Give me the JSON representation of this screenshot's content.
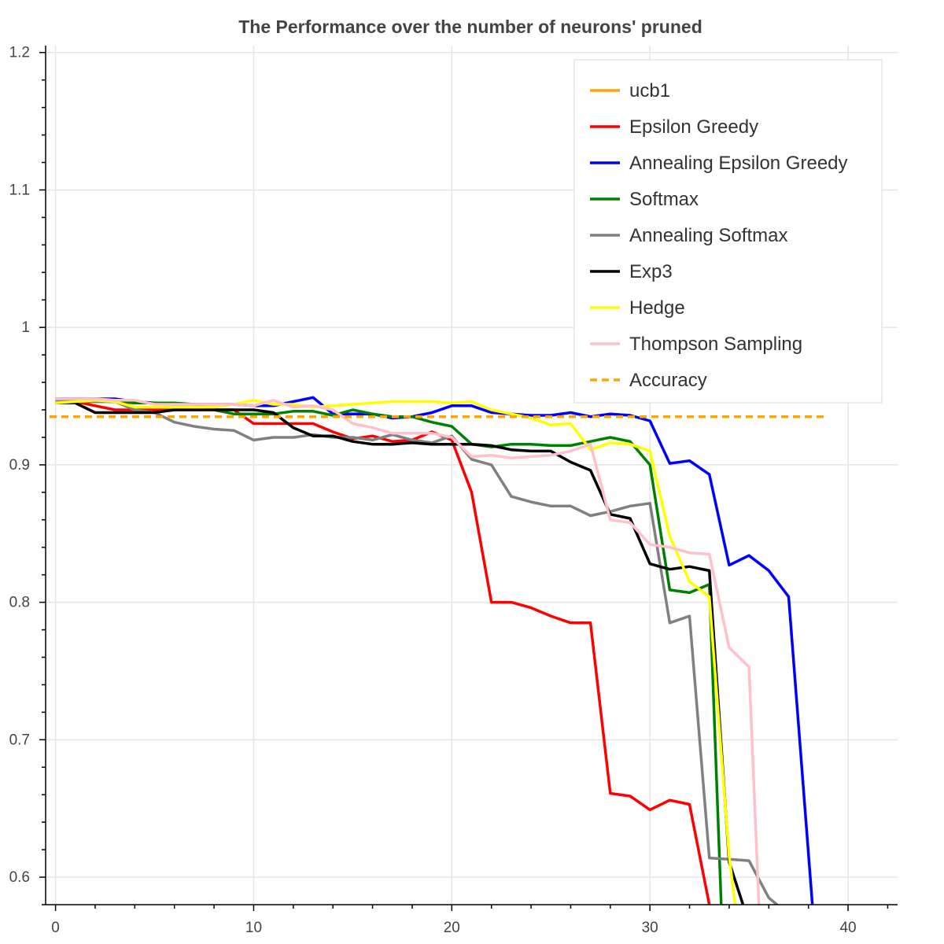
{
  "chart_data": {
    "type": "line",
    "title": "The Performance over the number of neurons' pruned",
    "xlabel": "",
    "ylabel": "",
    "xlim": [
      -0.5,
      42.5
    ],
    "ylim": [
      0.58,
      1.205
    ],
    "x_ticks": [
      0,
      10,
      20,
      30,
      40
    ],
    "x_tick_labels": [
      "0",
      "10",
      "20",
      "30",
      "40"
    ],
    "y_ticks": [
      0.6,
      0.7,
      0.8,
      0.9,
      1.0,
      1.1,
      1.2
    ],
    "y_tick_labels": [
      "0.6",
      "0.7",
      "0.8",
      "0.9",
      "1",
      "1.1",
      "1.2"
    ],
    "grid": true,
    "legend_position": "top-right",
    "series": [
      {
        "name": "ucb1",
        "color": "#ffa500",
        "dash": "solid",
        "x": [],
        "y": []
      },
      {
        "name": "Epsilon Greedy",
        "color": "#ff0000",
        "dash": "solid",
        "x": [
          0,
          1,
          2,
          3,
          4,
          5,
          6,
          7,
          8,
          9,
          10,
          11,
          12,
          13,
          14,
          15,
          16,
          17,
          18,
          19,
          20,
          21,
          22,
          23,
          24,
          25,
          26,
          27,
          28,
          29,
          30,
          31,
          32,
          33
        ],
        "y": [
          0.947,
          0.946,
          0.943,
          0.94,
          0.94,
          0.94,
          0.94,
          0.94,
          0.94,
          0.94,
          0.93,
          0.93,
          0.93,
          0.93,
          0.924,
          0.919,
          0.921,
          0.917,
          0.918,
          0.924,
          0.918,
          0.88,
          0.8,
          0.8,
          0.796,
          0.79,
          0.785,
          0.785,
          0.661,
          0.659,
          0.649,
          0.656,
          0.653,
          0.58
        ]
      },
      {
        "name": "Annealing Epsilon Greedy",
        "color": "#0000ff",
        "dash": "solid",
        "x": [
          0,
          1,
          2,
          3,
          4,
          5,
          6,
          7,
          8,
          9,
          10,
          11,
          12,
          13,
          14,
          15,
          16,
          17,
          18,
          19,
          20,
          21,
          22,
          23,
          24,
          25,
          26,
          27,
          28,
          29,
          30,
          31,
          32,
          33,
          34,
          35,
          36,
          37,
          38.2
        ],
        "y": [
          0.948,
          0.948,
          0.948,
          0.948,
          0.946,
          0.945,
          0.944,
          0.944,
          0.944,
          0.944,
          0.943,
          0.943,
          0.946,
          0.949,
          0.937,
          0.937,
          0.937,
          0.934,
          0.935,
          0.938,
          0.943,
          0.943,
          0.938,
          0.937,
          0.936,
          0.936,
          0.938,
          0.935,
          0.937,
          0.936,
          0.932,
          0.901,
          0.903,
          0.893,
          0.827,
          0.834,
          0.823,
          0.804,
          0.58
        ]
      },
      {
        "name": "Softmax",
        "color": "#008000",
        "dash": "solid",
        "x": [
          0,
          1,
          2,
          3,
          4,
          5,
          6,
          7,
          8,
          9,
          10,
          11,
          12,
          13,
          14,
          15,
          16,
          17,
          18,
          19,
          20,
          21,
          22,
          23,
          24,
          25,
          26,
          27,
          28,
          29,
          30,
          31,
          32,
          33,
          33.6
        ],
        "y": [
          0.946,
          0.946,
          0.946,
          0.946,
          0.945,
          0.945,
          0.945,
          0.944,
          0.94,
          0.937,
          0.937,
          0.937,
          0.939,
          0.939,
          0.936,
          0.94,
          0.937,
          0.935,
          0.935,
          0.931,
          0.928,
          0.915,
          0.913,
          0.915,
          0.915,
          0.914,
          0.914,
          0.917,
          0.92,
          0.917,
          0.9,
          0.809,
          0.807,
          0.813,
          0.58
        ]
      },
      {
        "name": "Annealing Softmax",
        "color": "#808080",
        "dash": "solid",
        "x": [
          0,
          1,
          2,
          3,
          4,
          5,
          6,
          7,
          8,
          9,
          10,
          11,
          12,
          13,
          14,
          15,
          16,
          17,
          18,
          19,
          20,
          21,
          22,
          23,
          24,
          25,
          26,
          27,
          28,
          29,
          30,
          31,
          32,
          33,
          34,
          35,
          36,
          37
        ],
        "y": [
          0.946,
          0.946,
          0.946,
          0.946,
          0.94,
          0.938,
          0.931,
          0.928,
          0.926,
          0.925,
          0.918,
          0.92,
          0.92,
          0.922,
          0.92,
          0.92,
          0.918,
          0.922,
          0.918,
          0.916,
          0.921,
          0.904,
          0.9,
          0.877,
          0.873,
          0.87,
          0.87,
          0.863,
          0.866,
          0.87,
          0.872,
          0.785,
          0.79,
          0.614,
          0.613,
          0.612,
          0.585,
          0.573
        ]
      },
      {
        "name": "Exp3",
        "color": "#000000",
        "dash": "solid",
        "x": [
          0,
          1,
          2,
          3,
          4,
          5,
          6,
          7,
          8,
          9,
          10,
          11,
          12,
          13,
          14,
          15,
          16,
          17,
          18,
          19,
          20,
          21,
          22,
          23,
          24,
          25,
          26,
          27,
          28,
          29,
          30,
          31,
          32,
          33,
          34,
          34.7
        ],
        "y": [
          0.945,
          0.945,
          0.938,
          0.938,
          0.938,
          0.938,
          0.94,
          0.94,
          0.94,
          0.94,
          0.94,
          0.938,
          0.927,
          0.921,
          0.921,
          0.917,
          0.915,
          0.915,
          0.916,
          0.915,
          0.915,
          0.915,
          0.914,
          0.911,
          0.91,
          0.91,
          0.902,
          0.896,
          0.864,
          0.861,
          0.828,
          0.824,
          0.826,
          0.823,
          0.611,
          0.58
        ]
      },
      {
        "name": "Hedge",
        "color": "#ffff00",
        "dash": "solid",
        "x": [
          0,
          1,
          2,
          3,
          4,
          5,
          6,
          7,
          8,
          9,
          10,
          11,
          12,
          13,
          14,
          15,
          16,
          17,
          18,
          19,
          20,
          21,
          22,
          23,
          24,
          25,
          26,
          27,
          28,
          29,
          30,
          31,
          32,
          33,
          34,
          34.3
        ],
        "y": [
          0.945,
          0.946,
          0.947,
          0.946,
          0.942,
          0.942,
          0.942,
          0.942,
          0.942,
          0.944,
          0.947,
          0.944,
          0.944,
          0.942,
          0.943,
          0.944,
          0.945,
          0.946,
          0.946,
          0.946,
          0.945,
          0.946,
          0.94,
          0.937,
          0.934,
          0.929,
          0.93,
          0.911,
          0.916,
          0.915,
          0.91,
          0.848,
          0.815,
          0.804,
          0.615,
          0.58
        ]
      },
      {
        "name": "Thompson Sampling",
        "color": "#ffc0cb",
        "dash": "solid",
        "x": [
          0,
          1,
          2,
          3,
          4,
          5,
          6,
          7,
          8,
          9,
          10,
          11,
          12,
          13,
          14,
          15,
          16,
          17,
          18,
          19,
          20,
          21,
          22,
          23,
          24,
          25,
          26,
          27,
          28,
          29,
          30,
          31,
          32,
          33,
          34,
          35,
          35.5
        ],
        "y": [
          0.948,
          0.948,
          0.948,
          0.947,
          0.947,
          0.944,
          0.944,
          0.944,
          0.944,
          0.944,
          0.943,
          0.947,
          0.942,
          0.943,
          0.94,
          0.93,
          0.927,
          0.923,
          0.923,
          0.923,
          0.92,
          0.906,
          0.907,
          0.905,
          0.906,
          0.907,
          0.91,
          0.915,
          0.86,
          0.858,
          0.842,
          0.84,
          0.836,
          0.835,
          0.767,
          0.753,
          0.58
        ]
      },
      {
        "name": "Accuracy",
        "color": "#ffa500",
        "dash": "dashed",
        "x": [
          -0.3,
          39
        ],
        "y": [
          0.935,
          0.935
        ]
      }
    ]
  }
}
